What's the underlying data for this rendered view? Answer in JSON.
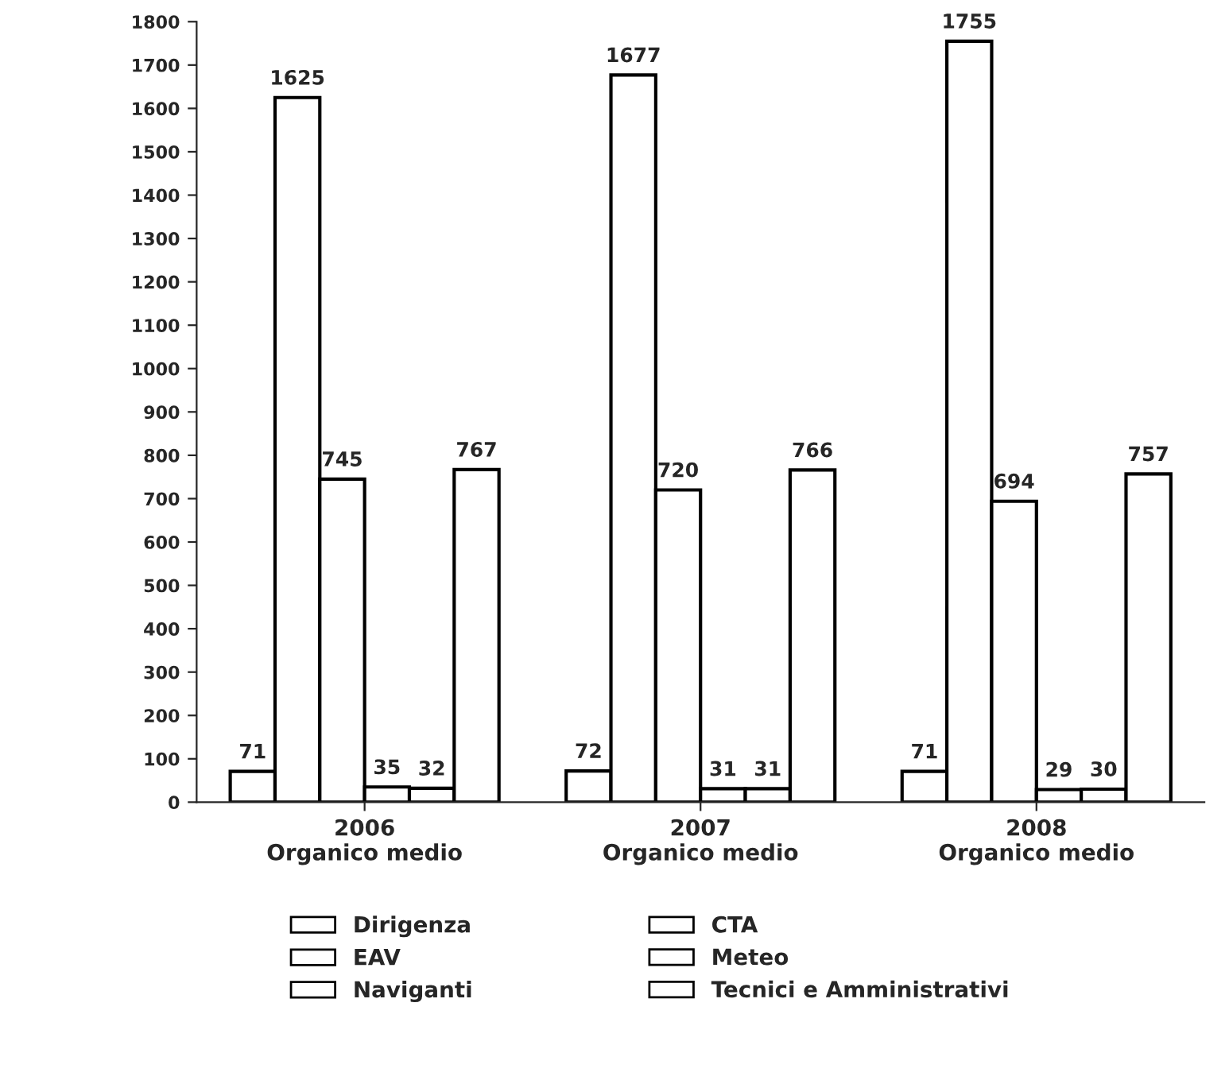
{
  "chart_data": {
    "type": "bar",
    "categories": [
      "2006\nOrganico medio",
      "2007\nOrganico medio",
      "2008\nOrganico medio"
    ],
    "series": [
      {
        "name": "Dirigenza",
        "color": "#ffffff",
        "values": [
          71,
          72,
          71
        ]
      },
      {
        "name": "CTA",
        "color": "#ffffff",
        "values": [
          1625,
          1677,
          1755
        ]
      },
      {
        "name": "EAV",
        "color": "#ffffff",
        "values": [
          745,
          720,
          694
        ]
      },
      {
        "name": "Meteo",
        "color": "#ffffff",
        "values": [
          35,
          31,
          29
        ]
      },
      {
        "name": "Naviganti",
        "color": "#ffffff",
        "values": [
          32,
          31,
          30
        ]
      },
      {
        "name": "Tecnici e Amministrativi",
        "color": "#ffffff",
        "values": [
          767,
          766,
          757
        ]
      }
    ],
    "ylim": [
      0,
      1800
    ],
    "yticks": [
      0,
      100,
      200,
      300,
      400,
      500,
      600,
      700,
      800,
      900,
      1000,
      1100,
      1200,
      1300,
      1400,
      1500,
      1600,
      1700,
      1800
    ],
    "data_labels": true,
    "legend": "bottom",
    "grid": false
  }
}
